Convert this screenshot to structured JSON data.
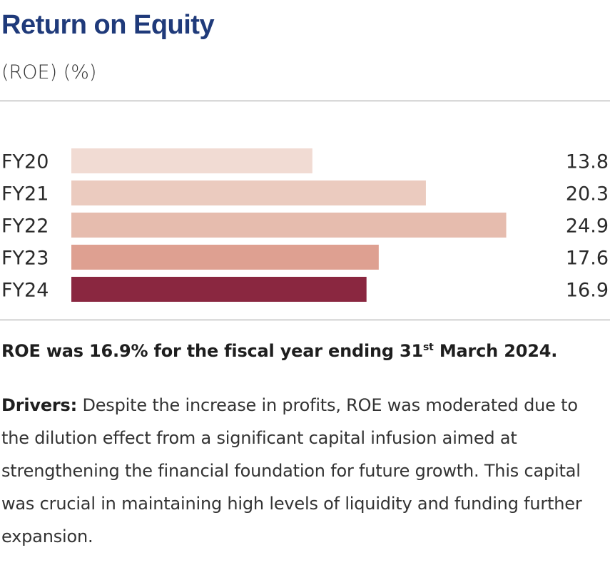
{
  "header": {
    "title": "Return on Equity",
    "subtitle": "(ROE) (%)"
  },
  "colors": {
    "title": "#1f3a7a",
    "bars": [
      "#f1dbd3",
      "#ebcbbf",
      "#e6bcae",
      "#dea091",
      "#8a2740"
    ]
  },
  "chart_data": {
    "type": "bar",
    "orientation": "horizontal",
    "title": "Return on Equity",
    "subtitle": "(ROE) (%)",
    "categories": [
      "FY20",
      "FY21",
      "FY22",
      "FY23",
      "FY24"
    ],
    "values": [
      13.8,
      20.3,
      24.9,
      17.6,
      16.9
    ],
    "data_labels": [
      "13.8",
      "20.3",
      "24.9",
      "17.6",
      "16.9"
    ],
    "xlim": [
      0,
      25
    ],
    "grid": false,
    "legend": "none"
  },
  "text": {
    "summary_main": "ROE was 16.9% for the fiscal year ending 31",
    "summary_sup": "st",
    "summary_tail": " March 2024.",
    "drivers_label": "Drivers:",
    "drivers_body": " Despite the increase in profits, ROE was moderated due to the dilution effect from a significant capital infusion aimed at strengthening the financial foundation for future growth. This capital was crucial in maintaining high levels of liquidity and funding further expansion."
  }
}
